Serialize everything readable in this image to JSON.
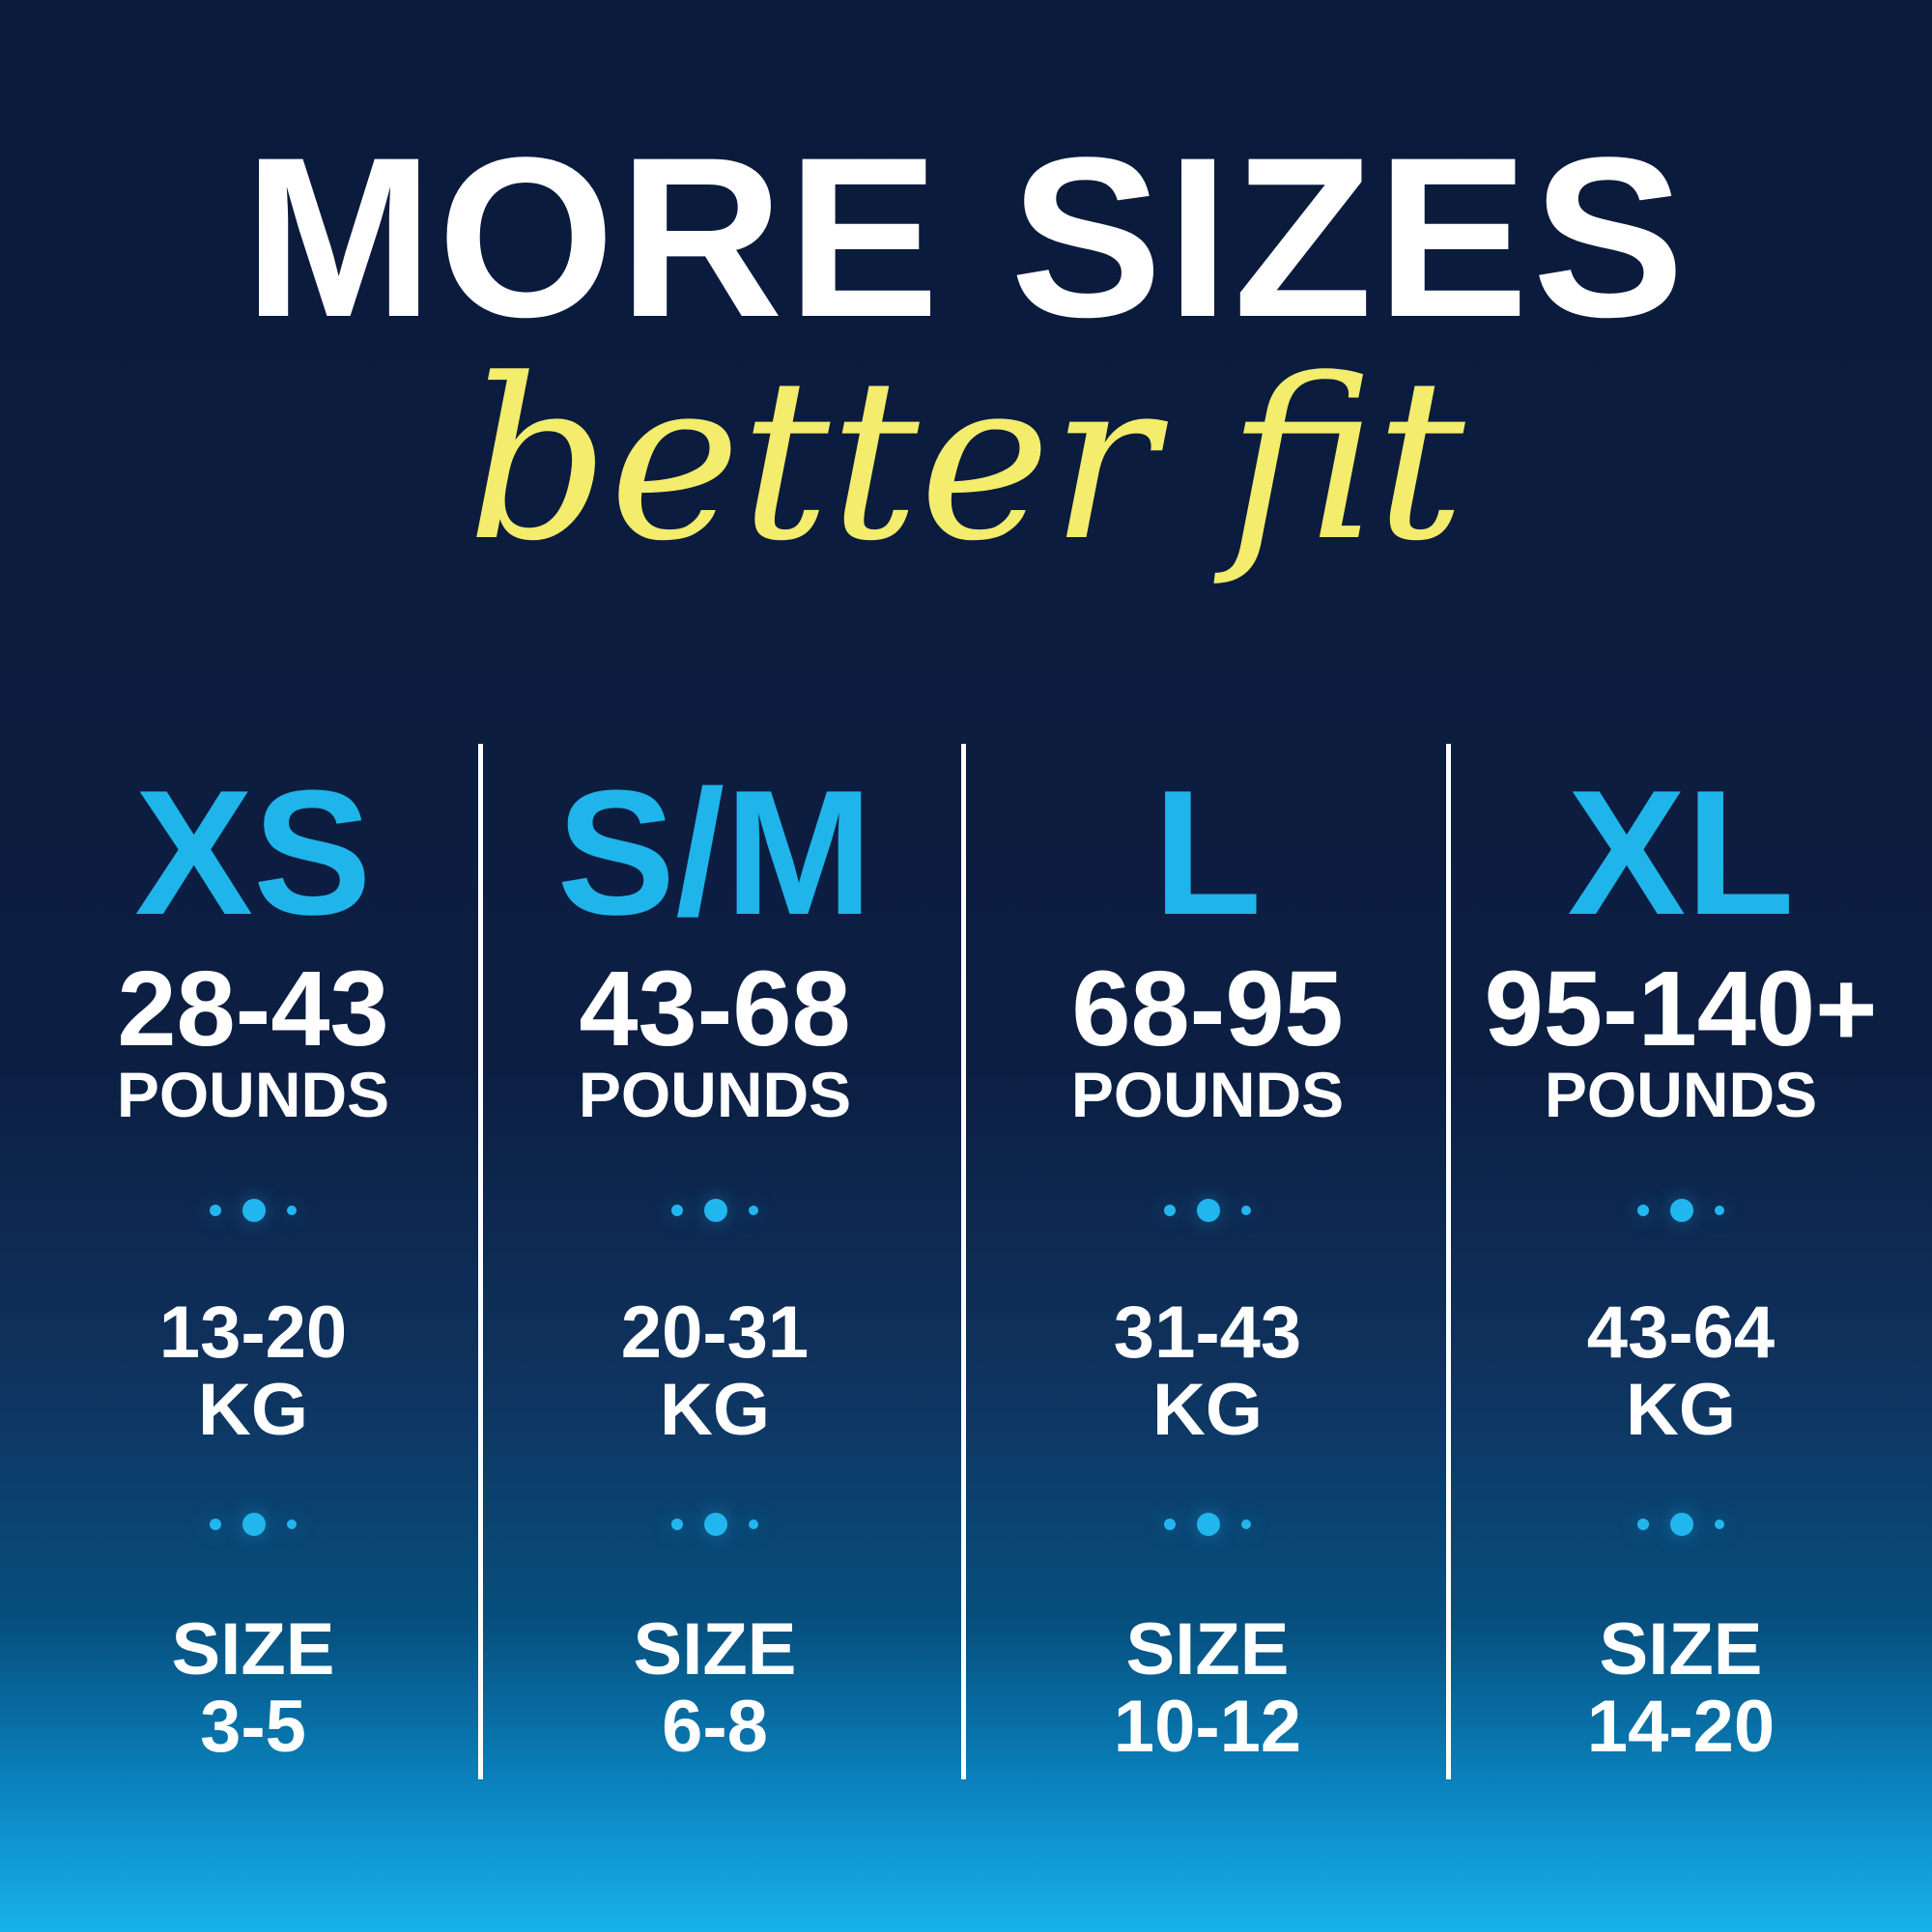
{
  "header": {
    "title": "MORE SIZES",
    "subtitle": "better fit"
  },
  "colors": {
    "accent": "#1fb5ea",
    "subtitle": "#f3ec6c",
    "background_top": "#0a1a3b",
    "background_bottom": "#18b2ea"
  },
  "columns": [
    {
      "size": "XS",
      "pounds": "28-43",
      "pounds_unit": "POUNDS",
      "kg": "13-20",
      "kg_unit": "KG",
      "size_label": "SIZE",
      "size_range": "3-5"
    },
    {
      "size": "S/M",
      "pounds": "43-68",
      "pounds_unit": "POUNDS",
      "kg": "20-31",
      "kg_unit": "KG",
      "size_label": "SIZE",
      "size_range": "6-8"
    },
    {
      "size": "L",
      "pounds": "68-95",
      "pounds_unit": "POUNDS",
      "kg": "31-43",
      "kg_unit": "KG",
      "size_label": "SIZE",
      "size_range": "10-12"
    },
    {
      "size": "XL",
      "pounds": "95-140+",
      "pounds_unit": "POUNDS",
      "kg": "43-64",
      "kg_unit": "KG",
      "size_label": "SIZE",
      "size_range": "14-20"
    }
  ]
}
